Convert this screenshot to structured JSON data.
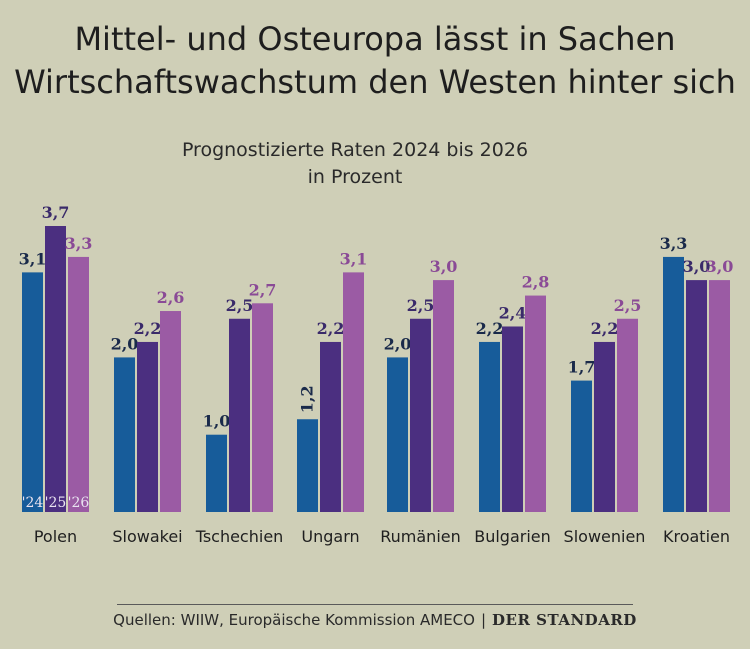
{
  "title_line1": "Mittel- und Osteuropa lässt in Sachen",
  "title_line2": "Wirtschaftswachstum den Westen hinter sich",
  "subtitle_line1": "Prognostizierte Raten 2024 bis 2026",
  "subtitle_line2": "in Prozent",
  "source": {
    "text": "Quellen: WIIW, Europäische Kommission AMECO",
    "separator": "|",
    "brand": "DER STANDARD"
  },
  "colors": {
    "background": "#cfcfb7",
    "y2024": "#175c9a",
    "y2025": "#4b2f80",
    "y2026": "#9b5ba4"
  },
  "chart_data": {
    "type": "bar",
    "title": "Mittel- und Osteuropa lässt in Sachen Wirtschaftswachstum den Westen hinter sich",
    "subtitle": "Prognostizierte Raten 2024 bis 2026 in Prozent",
    "categories": [
      "Polen",
      "Slowakei",
      "Tschechien",
      "Ungarn",
      "Rumänien",
      "Bulgarien",
      "Slowenien",
      "Kroatien"
    ],
    "series": [
      {
        "name": "'24",
        "values": [
          3.1,
          2.0,
          1.0,
          1.2,
          2.0,
          2.2,
          1.7,
          3.3
        ]
      },
      {
        "name": "'25",
        "values": [
          3.7,
          2.2,
          2.5,
          2.2,
          2.5,
          2.4,
          2.2,
          3.0
        ]
      },
      {
        "name": "'26",
        "values": [
          3.3,
          2.6,
          2.7,
          3.1,
          3.0,
          2.8,
          2.5,
          3.0
        ]
      }
    ],
    "value_labels": [
      [
        "3,1",
        "2,0",
        "1,0",
        "1,2",
        "2,0",
        "2,2",
        "1,7",
        "3,3"
      ],
      [
        "3,7",
        "2,2",
        "2,5",
        "2,2",
        "2,5",
        "2,4",
        "2,2",
        "3,0"
      ],
      [
        "3,3",
        "2,6",
        "2,7",
        "3,1",
        "3,0",
        "2,8",
        "2,5",
        "3,0"
      ]
    ],
    "ylim": [
      0,
      3.7
    ],
    "grid": false,
    "legend": "inside-first-group-bottom"
  }
}
